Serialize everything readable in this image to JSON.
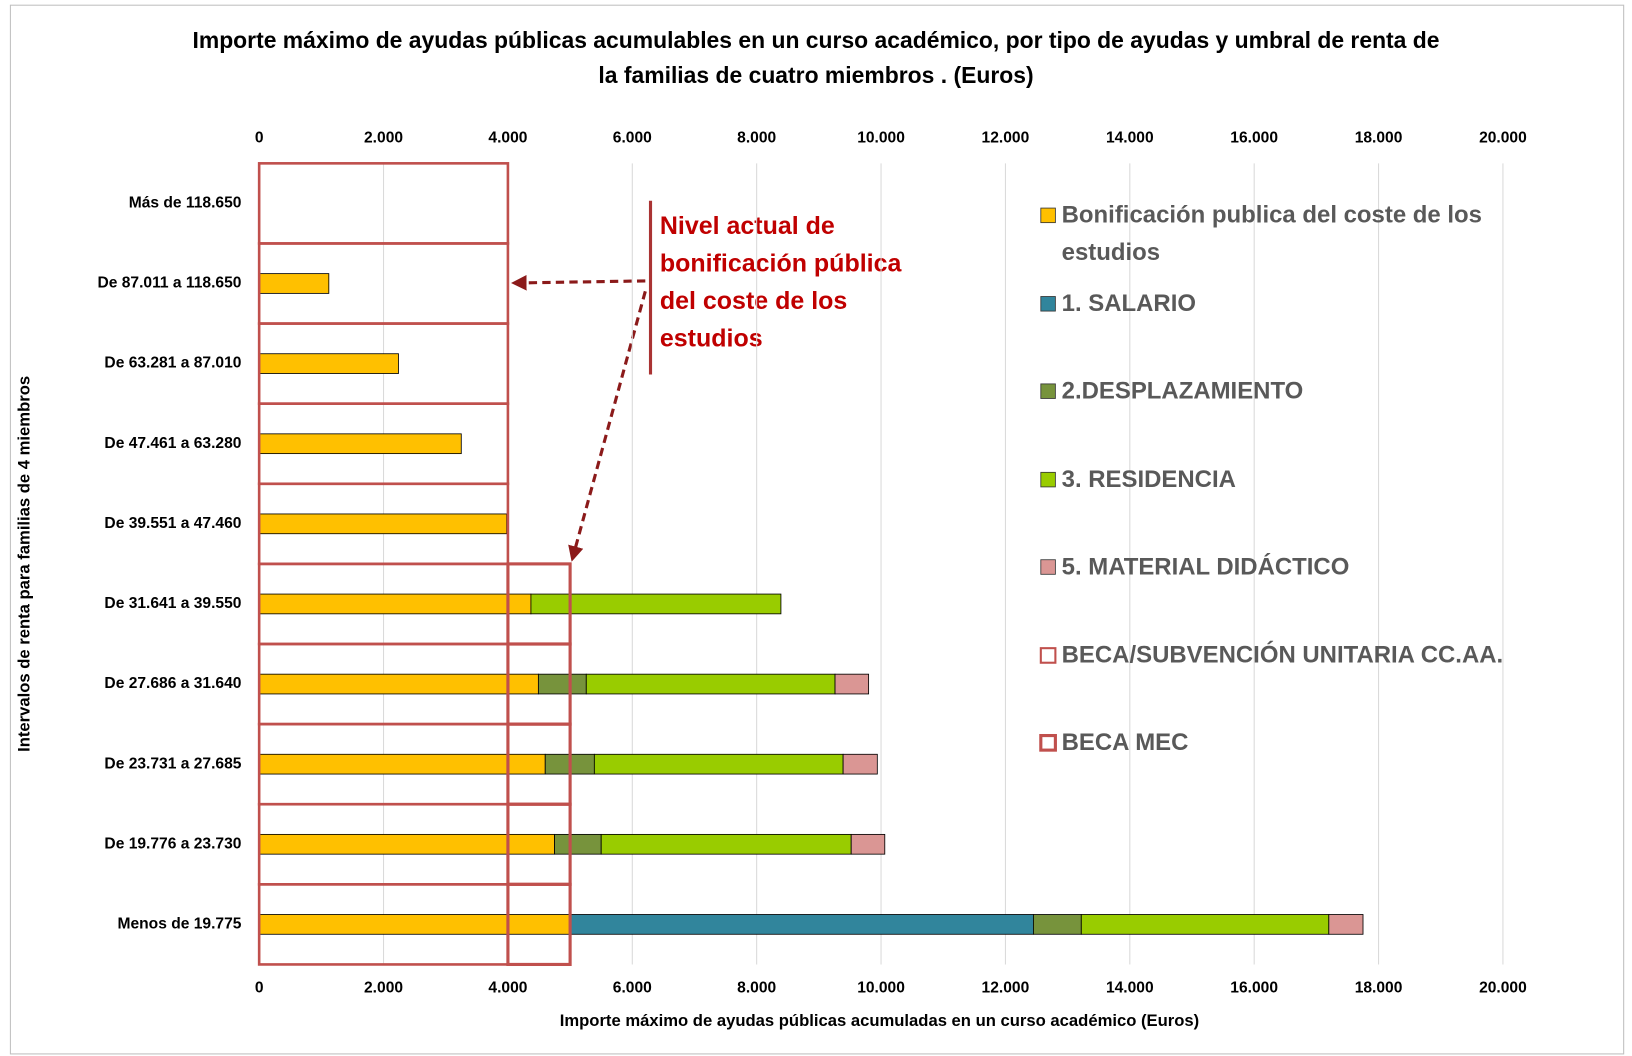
{
  "chart_data": {
    "type": "stacked_barh",
    "title": "Importe máximo de ayudas públicas acumulables en un curso académico, por tipo de ayudas y umbral de renta de la familias de cuatro miembros . (Euros)",
    "xlabel": "Importe máximo de ayudas públicas acumuladas  en un curso académico (Euros)",
    "ylabel": "Intervalos de renta para familias de 4 miembros",
    "annotation": "Nivel actual de bonificación pública del coste de los estudios",
    "categories": [
      "Más de 118.650",
      "De 87.011 a 118.650",
      "De 63.281 a 87.010",
      "De 47.461 a 63.280",
      "De 39.551 a 47.460",
      "De 31.641 a 39.550",
      "De 27.686 a 31.640",
      "De 23.731 a 27.685",
      "De 19.776 a 23.730",
      "Menos de 19.775"
    ],
    "series": [
      {
        "name": "Bonificación publica del coste de los estudios",
        "color": "#FFC000",
        "values": [
          0,
          1120,
          2240,
          3250,
          3980,
          4370,
          4490,
          4600,
          4750,
          5000
        ]
      },
      {
        "name": "1. SALARIO",
        "color": "#31859C",
        "values": [
          null,
          null,
          null,
          null,
          null,
          null,
          null,
          null,
          null,
          7450
        ]
      },
      {
        "name": "2.DESPLAZAMIENTO",
        "color": "#77933C",
        "values": [
          null,
          null,
          null,
          null,
          null,
          null,
          770,
          790,
          750,
          770
        ]
      },
      {
        "name": "3. RESIDENCIA",
        "color": "#99CC00",
        "values": [
          null,
          null,
          null,
          null,
          null,
          4020,
          4000,
          4000,
          4020,
          3980
        ]
      },
      {
        "name": "5. MATERIAL DIDÁCTICO",
        "color": "#DA9694",
        "values": [
          null,
          null,
          null,
          null,
          null,
          null,
          540,
          550,
          540,
          550
        ]
      },
      {
        "name": "BECA/SUBVENCIÓN UNITARIA CC.AA.",
        "color": "#C0504D",
        "outline": true,
        "stack": 1,
        "values": [
          4000,
          4000,
          4000,
          4000,
          4000,
          4000,
          4000,
          4000,
          4000,
          4000
        ]
      },
      {
        "name": "BECA MEC",
        "color": "#C0504D",
        "outline": true,
        "stack": 1,
        "values": [
          null,
          null,
          null,
          null,
          null,
          1000,
          1000,
          1000,
          1000,
          1000
        ]
      }
    ],
    "xlim": [
      0,
      20000
    ],
    "xticks": [
      0,
      {
        "value": 2000,
        "label": "2.000"
      },
      {
        "value": 4000,
        "label": "4.000"
      },
      {
        "value": 6000,
        "label": "6.000"
      },
      {
        "value": 8000,
        "label": "8.000"
      },
      {
        "value": 10000,
        "label": "10.000"
      },
      {
        "value": 12000,
        "label": "12.000"
      },
      {
        "value": 14000,
        "label": "14.000"
      },
      {
        "value": 16000,
        "label": "16.000"
      },
      {
        "value": 18000,
        "label": "18.000"
      },
      {
        "value": 20000,
        "label": "20.000"
      }
    ],
    "grid": true,
    "legend": "right"
  }
}
